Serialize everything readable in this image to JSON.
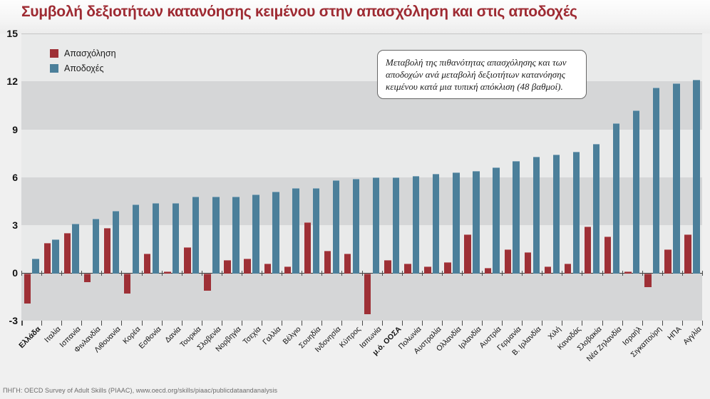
{
  "title": "Συμβολή δεξιοτήτων κατανόησης κειμένου στην απασχόληση και στις αποδοχές",
  "title_color": "#9e2a32",
  "legend": {
    "items": [
      {
        "label": "Απασχόληση",
        "color": "#9e3036"
      },
      {
        "label": "Αποδοχές",
        "color": "#4b7f9a"
      }
    ]
  },
  "annotation": "Μεταβολή της πιθανότητας απασχόλησης και των αποδοχών ανά μεταβολή δεξιοτήτων κατανόησης κειμένου κατά μια τυπική απόκλιση (48 βαθμοί).",
  "source": "ΠΗΓΗ: OECD Survey of Adult Skills (PIAAC), www.oecd.org/skills/piaac/publicdataandanalysis",
  "chart_data": {
    "type": "bar",
    "title": "Συμβολή δεξιοτήτων κατανόησης κειμένου στην απασχόληση και στις αποδοχές",
    "xlabel": "",
    "ylabel": "",
    "ylim": [
      -3,
      15
    ],
    "yticks": [
      15,
      12,
      9,
      6,
      3,
      0,
      -3
    ],
    "grid": "alternating horizontal bands",
    "legend_position": "top-left inside plot",
    "band_colors": {
      "light": "#e9eaea",
      "dark": "#d5d6d7"
    },
    "categories": [
      "Ελλάδα",
      "Ιταλία",
      "Ισπανία",
      "Φινλανδία",
      "Λιθουανία",
      "Κορέα",
      "Εσθονία",
      "Δανία",
      "Τουρκία",
      "Σλοβενία",
      "Νορβηγία",
      "Τσεχία",
      "Γαλλία",
      "Βέλγιο",
      "Σουηδία",
      "Ινδονησία",
      "Κύπρος",
      "Ιαπωνία",
      "μ.ό. ΟΟΣΑ",
      "Πολωνία",
      "Αυστραλία",
      "Ολλανδία",
      "Ιρλανδία",
      "Αυστρία",
      "Γερμανία",
      "Β. Ιρλανδία",
      "Χιλή",
      "Καναδάς",
      "Σλοβακία",
      "Νέα Ζηλανδία",
      "Ισραήλ",
      "Σιγκαπούρη",
      "ΗΠΑ",
      "Αγγλία"
    ],
    "emphasized_categories": [
      "Ελλάδα",
      "μ.ό. ΟΟΣΑ"
    ],
    "series": [
      {
        "name": "Απασχόληση",
        "color": "#9e3036",
        "values": [
          -1.8,
          1.9,
          2.5,
          -0.5,
          2.8,
          -1.2,
          1.2,
          0.1,
          1.6,
          -1.0,
          0.8,
          0.9,
          0.6,
          0.4,
          3.2,
          1.4,
          1.2,
          -2.5,
          0.8,
          0.6,
          0.4,
          0.7,
          2.4,
          0.3,
          1.5,
          1.3,
          0.4,
          0.6,
          2.9,
          2.3,
          0.1,
          -0.8,
          1.5,
          2.4
        ]
      },
      {
        "name": "Αποδοχές",
        "color": "#4b7f9a",
        "values": [
          0.9,
          2.1,
          3.1,
          3.4,
          3.9,
          4.3,
          4.4,
          4.4,
          4.8,
          4.8,
          4.8,
          4.9,
          5.1,
          5.3,
          5.3,
          5.8,
          5.9,
          6.0,
          6.0,
          6.1,
          6.2,
          6.3,
          6.4,
          6.6,
          7.0,
          7.3,
          7.4,
          7.6,
          8.1,
          9.4,
          10.2,
          11.6,
          11.9,
          12.1
        ]
      }
    ]
  }
}
